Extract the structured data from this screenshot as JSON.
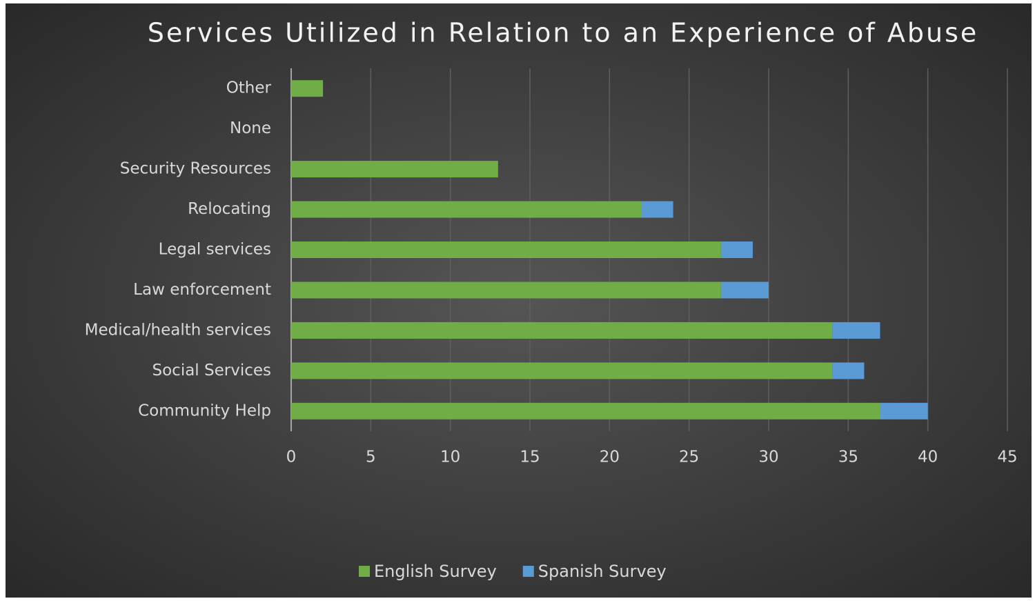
{
  "chart_data": {
    "type": "bar",
    "orientation": "horizontal",
    "stacked": true,
    "title": "Services Utilized in Relation to an Experience of Abuse",
    "categories": [
      "Other",
      "None",
      "Security Resources",
      "Relocating",
      "Legal services",
      "Law enforcement",
      "Medical/health services",
      "Social Services",
      "Community Help"
    ],
    "series": [
      {
        "name": "English Survey",
        "color": "#70ad47",
        "values": [
          2,
          0,
          13,
          22,
          27,
          27,
          34,
          34,
          37
        ]
      },
      {
        "name": "Spanish Survey",
        "color": "#5b9bd5",
        "values": [
          0,
          0,
          0,
          2,
          2,
          3,
          3,
          2,
          3
        ]
      }
    ],
    "xlim": [
      0,
      45
    ],
    "xticks": [
      0,
      5,
      10,
      15,
      20,
      25,
      30,
      35,
      40,
      45
    ],
    "grid": true,
    "legend": "bottom"
  }
}
